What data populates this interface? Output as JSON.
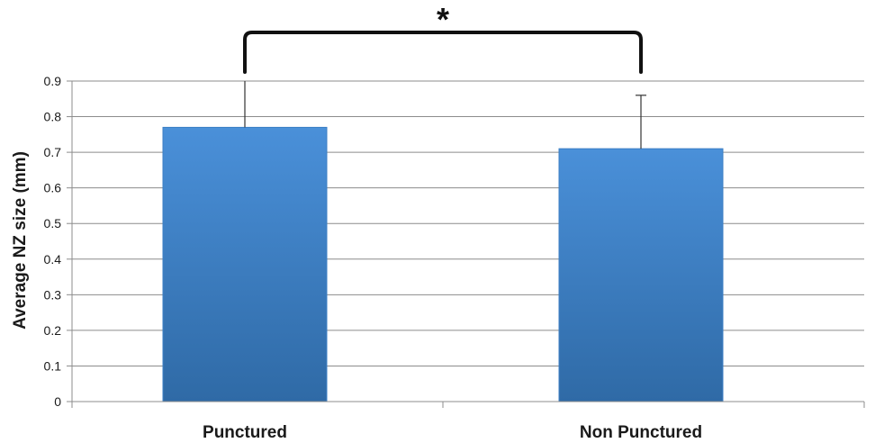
{
  "chart_data": {
    "type": "bar",
    "categories": [
      "Punctured",
      "Non Punctured"
    ],
    "values": [
      0.77,
      0.71
    ],
    "error_upper": [
      0.9,
      0.86
    ],
    "ylabel": "Average NZ size (mm)",
    "ylim": [
      0,
      0.9
    ],
    "yticks": [
      "0",
      "0.1",
      "0.2",
      "0.3",
      "0.4",
      "0.5",
      "0.6",
      "0.7",
      "0.8",
      "0.9"
    ],
    "grid": true,
    "legend": "none",
    "bar_color_top": "#4a90d9",
    "bar_color_bottom": "#2f6aa6",
    "significance": {
      "between": [
        "Punctured",
        "Non Punctured"
      ],
      "label": "*"
    }
  }
}
